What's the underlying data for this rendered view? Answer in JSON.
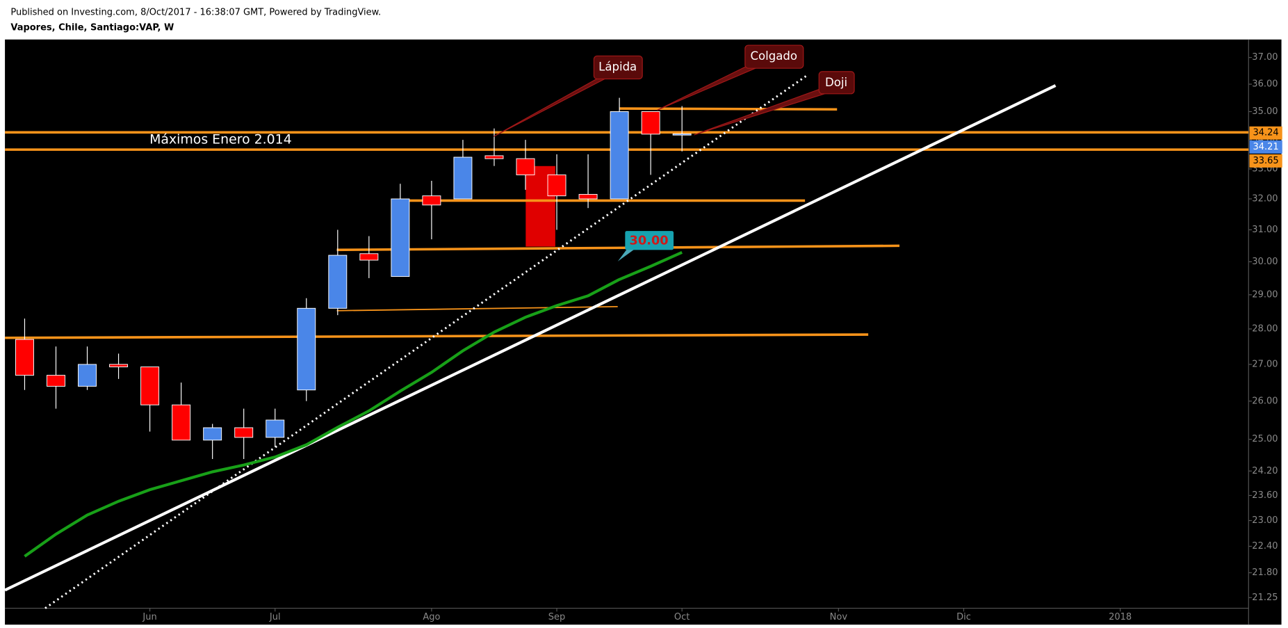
{
  "header": {
    "published": "Published on Investing.com, 8/Oct/2017 - 16:38:07 GMT, Powered by TradingView.",
    "symbol": "Vapores, Chile, Santiago:VAP, W"
  },
  "chart_data": {
    "type": "candlestick",
    "log_scale": true,
    "up_color": "#4a86e8",
    "down_color": "#ff0000",
    "x": [
      0,
      1,
      2,
      3,
      4,
      5,
      6,
      7,
      8,
      9,
      10,
      11,
      12,
      13,
      14,
      15,
      16,
      17,
      18,
      19,
      20,
      21
    ],
    "open": [
      27.7,
      26.7,
      26.4,
      27.0,
      26.93,
      25.9,
      24.98,
      25.3,
      25.05,
      26.3,
      28.6,
      30.25,
      29.55,
      32.1,
      32.0,
      33.45,
      33.35,
      32.8,
      32.15,
      32.0,
      35.0,
      34.2
    ],
    "high": [
      28.3,
      27.5,
      27.5,
      27.3,
      26.93,
      26.5,
      25.4,
      25.8,
      25.8,
      28.9,
      31.0,
      30.8,
      32.5,
      32.6,
      34.0,
      34.4,
      34.0,
      33.5,
      33.5,
      35.5,
      35.0,
      35.2
    ],
    "low": [
      26.3,
      25.8,
      26.3,
      26.6,
      25.2,
      24.98,
      24.5,
      24.5,
      24.8,
      26.0,
      28.4,
      29.5,
      29.55,
      30.7,
      32.0,
      33.1,
      32.3,
      31.0,
      31.7,
      32.0,
      32.8,
      33.6
    ],
    "close": [
      26.7,
      26.4,
      27.0,
      26.93,
      25.9,
      24.98,
      25.3,
      25.05,
      25.5,
      28.6,
      30.2,
      30.05,
      32.0,
      31.8,
      33.4,
      33.35,
      32.8,
      32.1,
      32.0,
      35.0,
      34.2,
      34.21
    ],
    "ma": {
      "color": "#18a018",
      "values": [
        22.17,
        22.68,
        23.13,
        23.46,
        23.74,
        23.96,
        24.18,
        24.35,
        24.55,
        24.86,
        25.31,
        25.74,
        26.27,
        26.78,
        27.38,
        27.91,
        28.34,
        28.68,
        28.97,
        29.46,
        29.86,
        30.29
      ]
    },
    "xlim": [
      -0.63,
      39.1
    ],
    "xticks": [
      {
        "value": 4,
        "label": "Jun"
      },
      {
        "value": 8,
        "label": "Jul"
      },
      {
        "value": 13,
        "label": "Ago"
      },
      {
        "value": 17,
        "label": "Sep"
      },
      {
        "value": 21,
        "label": "Oct"
      },
      {
        "value": 26,
        "label": "Nov"
      },
      {
        "value": 30,
        "label": "Dic"
      },
      {
        "value": 35,
        "label": "2018"
      }
    ],
    "ylim": [
      21.02,
      37.69
    ],
    "yticks": [
      {
        "value": 37,
        "label": "37.00"
      },
      {
        "value": 36,
        "label": "36.00"
      },
      {
        "value": 35,
        "label": "35.00"
      },
      {
        "value": 34,
        "label": "34.00"
      },
      {
        "value": 33,
        "label": "33.00"
      },
      {
        "value": 32,
        "label": "32.00"
      },
      {
        "value": 31,
        "label": "31.00"
      },
      {
        "value": 30,
        "label": "30.00"
      },
      {
        "value": 29,
        "label": "29.00"
      },
      {
        "value": 28,
        "label": "28.00"
      },
      {
        "value": 27,
        "label": "27.00"
      },
      {
        "value": 26,
        "label": "26.00"
      },
      {
        "value": 25,
        "label": "25.00"
      },
      {
        "value": 24.2,
        "label": "24.20"
      },
      {
        "value": 23.6,
        "label": "23.60"
      },
      {
        "value": 23,
        "label": "23.00"
      },
      {
        "value": 22.4,
        "label": "22.40"
      },
      {
        "value": 21.8,
        "label": "21.80"
      },
      {
        "value": 21.25,
        "label": "21.25"
      }
    ],
    "price_labels": [
      {
        "value": 34.24,
        "color": "#f7931a"
      },
      {
        "value": 34.21,
        "color": "#4a86e8"
      },
      {
        "value": 33.65,
        "color": "#f7931a"
      }
    ],
    "annotations": {
      "lapida": "Lápida",
      "colgado": "Colgado",
      "doji": "Doji",
      "maximos": "Máximos Enero 2.014",
      "level": {
        "value": 30,
        "label": "30.00"
      }
    }
  }
}
